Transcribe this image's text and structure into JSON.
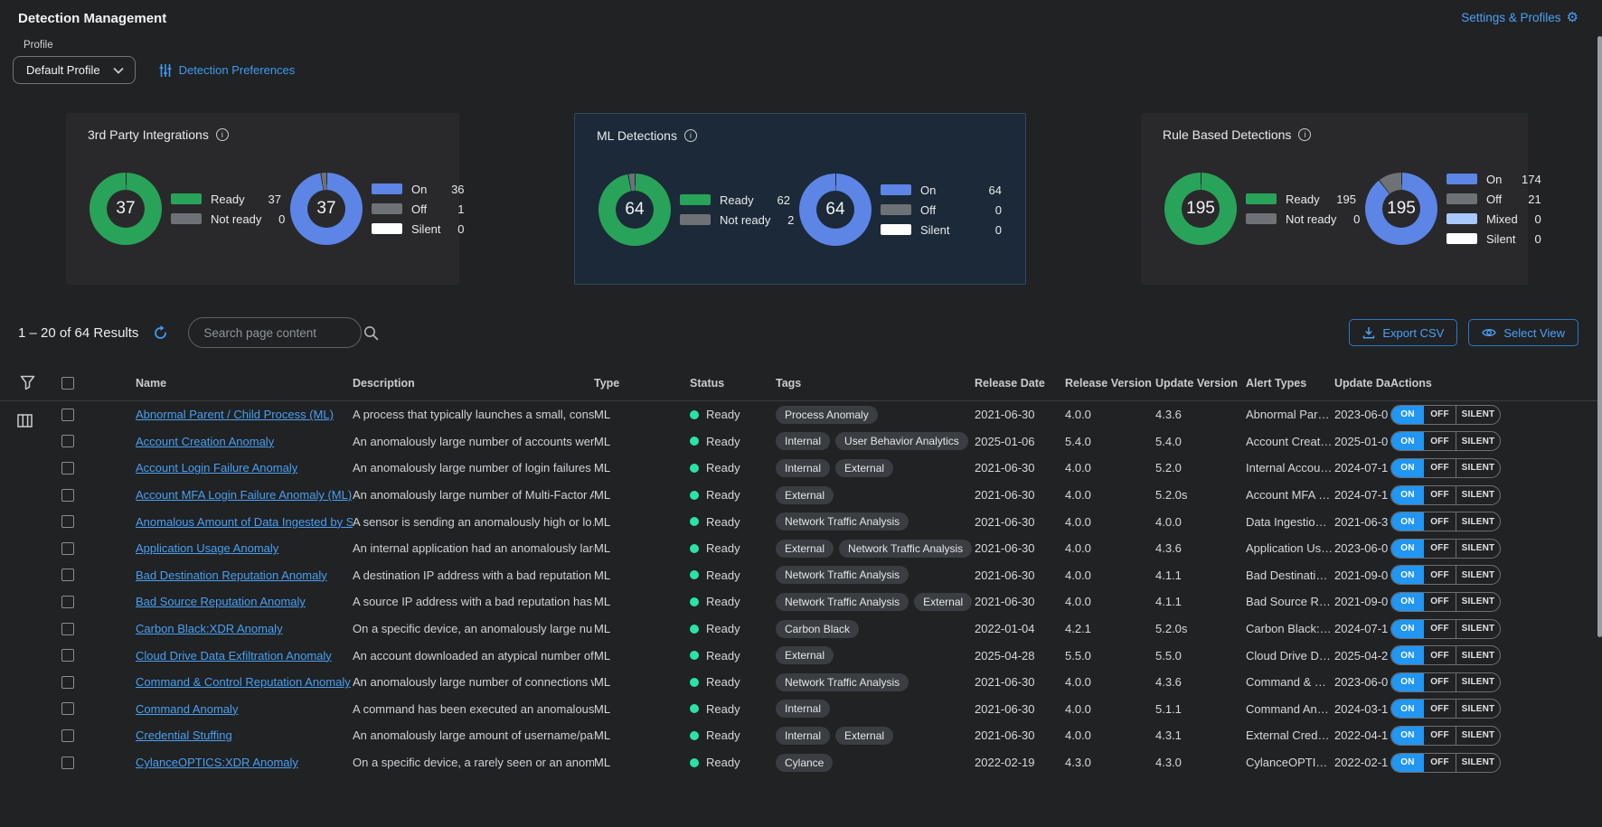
{
  "page": {
    "title": "Detection Management",
    "settings_link": "Settings & Profiles",
    "gear_glyph": "⚙"
  },
  "profile": {
    "label": "Profile",
    "selected": "Default Profile",
    "preferences_link": "Detection Preferences"
  },
  "colors": {
    "green": "#29a359",
    "gray": "#6e7276",
    "blue": "#5c85e6",
    "light_blue": "#a8c7fa",
    "white": "#ffffff",
    "accent_blue": "#2196f3",
    "link_blue": "#4a9ff0",
    "status_green": "#2be3a7"
  },
  "cards": [
    {
      "title": "3rd Party Integrations",
      "selected": false,
      "donuts": [
        {
          "total": "37",
          "segments": [
            {
              "label": "Ready",
              "color_key": "green",
              "value": 37
            },
            {
              "label": "Not ready",
              "color_key": "gray",
              "value": 0
            }
          ]
        },
        {
          "total": "37",
          "segments": [
            {
              "label": "On",
              "color_key": "blue",
              "value": 36
            },
            {
              "label": "Off",
              "color_key": "gray",
              "value": 1
            },
            {
              "label": "Silent",
              "color_key": "white",
              "value": 0
            }
          ]
        }
      ]
    },
    {
      "title": "ML Detections",
      "selected": true,
      "donuts": [
        {
          "total": "64",
          "segments": [
            {
              "label": "Ready",
              "color_key": "green",
              "value": 62
            },
            {
              "label": "Not ready",
              "color_key": "gray",
              "value": 2
            }
          ]
        },
        {
          "total": "64",
          "segments": [
            {
              "label": "On",
              "color_key": "blue",
              "value": 64
            },
            {
              "label": "Off",
              "color_key": "gray",
              "value": 0
            },
            {
              "label": "Silent",
              "color_key": "white",
              "value": 0
            }
          ]
        }
      ]
    },
    {
      "title": "Rule Based Detections",
      "selected": false,
      "donuts": [
        {
          "total": "195",
          "segments": [
            {
              "label": "Ready",
              "color_key": "green",
              "value": 195
            },
            {
              "label": "Not ready",
              "color_key": "gray",
              "value": 0
            }
          ]
        },
        {
          "total": "195",
          "segments": [
            {
              "label": "On",
              "color_key": "blue",
              "value": 174
            },
            {
              "label": "Off",
              "color_key": "gray",
              "value": 21
            },
            {
              "label": "Mixed",
              "color_key": "light_blue",
              "value": 0
            },
            {
              "label": "Silent",
              "color_key": "white",
              "value": 0
            }
          ]
        }
      ]
    }
  ],
  "toolbar": {
    "results": "1 – 20 of 64 Results",
    "search_placeholder": "Search page content",
    "export_label": "Export CSV",
    "select_view_label": "Select View"
  },
  "table": {
    "columns": [
      "Name",
      "Description",
      "Type",
      "Status",
      "Tags",
      "Release Date",
      "Release Version",
      "Update Version",
      "Alert Types",
      "Update Date",
      "Actions"
    ],
    "action_labels": {
      "on": "ON",
      "off": "OFF",
      "silent": "SILENT"
    },
    "rows": [
      {
        "name": "Abnormal Parent / Child Process (ML)",
        "description": "A process that typically launches a small, consi…",
        "type": "ML",
        "status": "Ready",
        "tags": [
          "Process Anomaly"
        ],
        "release_date": "2021-06-30",
        "release_version": "4.0.0",
        "update_version": "4.3.6",
        "alert_types": "Abnormal Par…",
        "update_date": "2023-06-0",
        "active_action": "on"
      },
      {
        "name": "Account Creation Anomaly",
        "description": "An anomalously large number of accounts wer…",
        "type": "ML",
        "status": "Ready",
        "tags": [
          "Internal",
          "User Behavior Analytics"
        ],
        "release_date": "2025-01-06",
        "release_version": "5.4.0",
        "update_version": "5.4.0",
        "alert_types": "Account Creat…",
        "update_date": "2025-01-0",
        "active_action": "on"
      },
      {
        "name": "Account Login Failure Anomaly",
        "description": "An anomalously large number of login failures …",
        "type": "ML",
        "status": "Ready",
        "tags": [
          "Internal",
          "External"
        ],
        "release_date": "2021-06-30",
        "release_version": "4.0.0",
        "update_version": "5.2.0",
        "alert_types": "Internal Accou…",
        "update_date": "2024-07-1",
        "active_action": "on"
      },
      {
        "name": "Account MFA Login Failure Anomaly (ML)",
        "description": "An anomalously large number of Multi-Factor A…",
        "type": "ML",
        "status": "Ready",
        "tags": [
          "External"
        ],
        "release_date": "2021-06-30",
        "release_version": "4.0.0",
        "update_version": "5.2.0s",
        "alert_types": "Account MFA …",
        "update_date": "2024-07-1",
        "active_action": "on"
      },
      {
        "name": "Anomalous Amount of Data Ingested by Sen",
        "description": "A sensor is sending an anomalously high or lo…",
        "type": "ML",
        "status": "Ready",
        "tags": [
          "Network Traffic Analysis"
        ],
        "release_date": "2021-06-30",
        "release_version": "4.0.0",
        "update_version": "4.0.0",
        "alert_types": "Data Ingestio…",
        "update_date": "2021-06-3",
        "active_action": "on"
      },
      {
        "name": "Application Usage Anomaly",
        "description": "An internal application had an anomalously larg…",
        "type": "ML",
        "status": "Ready",
        "tags": [
          "External",
          "Network Traffic Analysis"
        ],
        "release_date": "2021-06-30",
        "release_version": "4.0.0",
        "update_version": "4.3.6",
        "alert_types": "Application Us…",
        "update_date": "2023-06-0",
        "active_action": "on"
      },
      {
        "name": "Bad Destination Reputation Anomaly",
        "description": "A destination IP address with a bad reputation …",
        "type": "ML",
        "status": "Ready",
        "tags": [
          "Network Traffic Analysis"
        ],
        "release_date": "2021-06-30",
        "release_version": "4.0.0",
        "update_version": "4.1.1",
        "alert_types": "Bad Destinati…",
        "update_date": "2021-09-0",
        "active_action": "on"
      },
      {
        "name": "Bad Source Reputation Anomaly",
        "description": "A source IP address with a bad reputation has …",
        "type": "ML",
        "status": "Ready",
        "tags": [
          "Network Traffic Analysis",
          "External"
        ],
        "release_date": "2021-06-30",
        "release_version": "4.0.0",
        "update_version": "4.1.1",
        "alert_types": "Bad Source R…",
        "update_date": "2021-09-0",
        "active_action": "on"
      },
      {
        "name": "Carbon Black:XDR Anomaly",
        "description": "On a specific device, an anomalously large nu…",
        "type": "ML",
        "status": "Ready",
        "tags": [
          "Carbon Black"
        ],
        "release_date": "2022-01-04",
        "release_version": "4.2.1",
        "update_version": "5.2.0s",
        "alert_types": "Carbon Black:…",
        "update_date": "2024-07-1",
        "active_action": "on"
      },
      {
        "name": "Cloud Drive Data Exfiltration Anomaly",
        "description": "An account downloaded an atypical number of …",
        "type": "ML",
        "status": "Ready",
        "tags": [
          "External"
        ],
        "release_date": "2025-04-28",
        "release_version": "5.5.0",
        "update_version": "5.5.0",
        "alert_types": "Cloud Drive D…",
        "update_date": "2025-04-2",
        "active_action": "on"
      },
      {
        "name": "Command & Control Reputation Anomaly",
        "description": "An anomalously large number of connections w…",
        "type": "ML",
        "status": "Ready",
        "tags": [
          "Network Traffic Analysis"
        ],
        "release_date": "2021-06-30",
        "release_version": "4.0.0",
        "update_version": "4.3.6",
        "alert_types": "Command & …",
        "update_date": "2023-06-0",
        "active_action": "on"
      },
      {
        "name": "Command Anomaly",
        "description": "A command has been executed an anomalousl…",
        "type": "ML",
        "status": "Ready",
        "tags": [
          "Internal"
        ],
        "release_date": "2021-06-30",
        "release_version": "4.0.0",
        "update_version": "5.1.1",
        "alert_types": "Command An…",
        "update_date": "2024-03-1",
        "active_action": "on"
      },
      {
        "name": "Credential Stuffing",
        "description": "An anomalously large amount of username/pas…",
        "type": "ML",
        "status": "Ready",
        "tags": [
          "Internal",
          "External"
        ],
        "release_date": "2021-06-30",
        "release_version": "4.0.0",
        "update_version": "4.3.1",
        "alert_types": "External Cred…",
        "update_date": "2022-04-1",
        "active_action": "on"
      },
      {
        "name": "CylanceOPTICS:XDR Anomaly",
        "description": "On a specific device, a rarely seen or an anom…",
        "type": "ML",
        "status": "Ready",
        "tags": [
          "Cylance"
        ],
        "release_date": "2022-02-19",
        "release_version": "4.3.0",
        "update_version": "4.3.0",
        "alert_types": "CylanceOPTI…",
        "update_date": "2022-02-1",
        "active_action": "on"
      }
    ]
  }
}
